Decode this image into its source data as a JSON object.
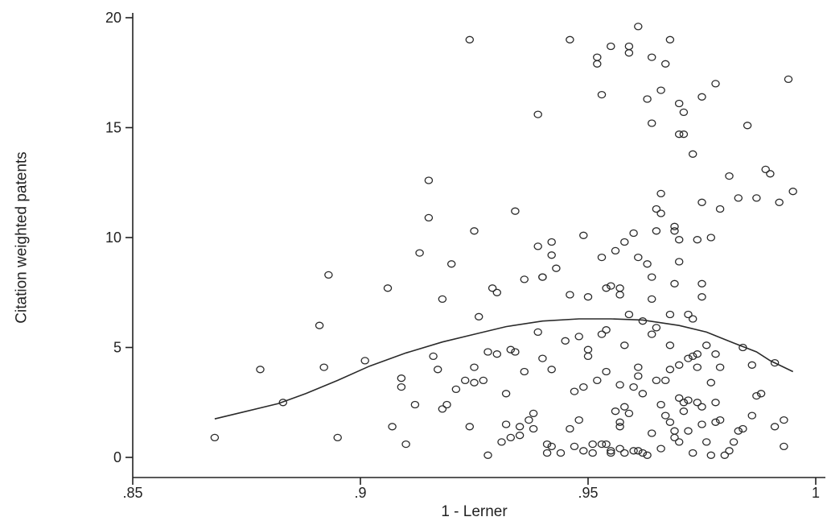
{
  "chart_data": {
    "type": "scatter",
    "xlabel": "1 - Lerner",
    "ylabel": "Citation weighted patents",
    "xlim": [
      0.85,
      1.0
    ],
    "ylim": [
      0,
      20
    ],
    "xticks": [
      {
        "value": 0.85,
        "label": ".85"
      },
      {
        "value": 0.9,
        "label": ".9"
      },
      {
        "value": 0.95,
        "label": ".95"
      },
      {
        "value": 1.0,
        "label": "1"
      }
    ],
    "yticks": [
      {
        "value": 0,
        "label": "0"
      },
      {
        "value": 5,
        "label": "5"
      },
      {
        "value": 10,
        "label": "10"
      },
      {
        "value": 15,
        "label": "15"
      },
      {
        "value": 20,
        "label": "20"
      }
    ],
    "grid": false,
    "legend": "none",
    "colors": {
      "marks": "#2a2a2a",
      "axes": "#222222",
      "background": "#ffffff"
    },
    "series": [
      {
        "mark": "hollow-circle",
        "points": [
          [
            0.868,
            0.9
          ],
          [
            0.878,
            4.0
          ],
          [
            0.883,
            2.5
          ],
          [
            0.891,
            6.0
          ],
          [
            0.892,
            4.1
          ],
          [
            0.893,
            8.3
          ],
          [
            0.895,
            0.9
          ],
          [
            0.901,
            4.4
          ],
          [
            0.906,
            7.7
          ],
          [
            0.907,
            1.4
          ],
          [
            0.909,
            3.6
          ],
          [
            0.909,
            3.2
          ],
          [
            0.91,
            0.6
          ],
          [
            0.912,
            2.4
          ],
          [
            0.913,
            9.3
          ],
          [
            0.915,
            12.6
          ],
          [
            0.915,
            10.9
          ],
          [
            0.916,
            4.6
          ],
          [
            0.917,
            4.0
          ],
          [
            0.918,
            7.2
          ],
          [
            0.918,
            2.2
          ],
          [
            0.919,
            2.4
          ],
          [
            0.92,
            8.8
          ],
          [
            0.921,
            3.1
          ],
          [
            0.923,
            3.5
          ],
          [
            0.924,
            1.4
          ],
          [
            0.924,
            19.0
          ],
          [
            0.925,
            10.3
          ],
          [
            0.925,
            4.1
          ],
          [
            0.925,
            3.4
          ],
          [
            0.926,
            6.4
          ],
          [
            0.927,
            3.5
          ],
          [
            0.928,
            4.8
          ],
          [
            0.928,
            0.1
          ],
          [
            0.929,
            7.7
          ],
          [
            0.93,
            7.5
          ],
          [
            0.93,
            4.7
          ],
          [
            0.931,
            0.7
          ],
          [
            0.932,
            2.9
          ],
          [
            0.932,
            1.5
          ],
          [
            0.933,
            4.9
          ],
          [
            0.933,
            0.9
          ],
          [
            0.934,
            11.2
          ],
          [
            0.934,
            4.8
          ],
          [
            0.935,
            1.4
          ],
          [
            0.935,
            1.0
          ],
          [
            0.936,
            8.1
          ],
          [
            0.936,
            3.9
          ],
          [
            0.937,
            1.7
          ],
          [
            0.938,
            1.3
          ],
          [
            0.938,
            2.0
          ],
          [
            0.939,
            5.7
          ],
          [
            0.939,
            15.6
          ],
          [
            0.939,
            9.6
          ],
          [
            0.94,
            8.2
          ],
          [
            0.94,
            8.2
          ],
          [
            0.94,
            4.5
          ],
          [
            0.941,
            0.6
          ],
          [
            0.941,
            0.2
          ],
          [
            0.942,
            9.8
          ],
          [
            0.942,
            9.2
          ],
          [
            0.942,
            4.0
          ],
          [
            0.942,
            0.5
          ],
          [
            0.943,
            8.6
          ],
          [
            0.944,
            0.2
          ],
          [
            0.945,
            5.3
          ],
          [
            0.946,
            1.3
          ],
          [
            0.946,
            19.0
          ],
          [
            0.946,
            7.4
          ],
          [
            0.947,
            3.0
          ],
          [
            0.947,
            0.5
          ],
          [
            0.948,
            5.5
          ],
          [
            0.948,
            1.7
          ],
          [
            0.949,
            10.1
          ],
          [
            0.949,
            3.2
          ],
          [
            0.949,
            0.3
          ],
          [
            0.95,
            7.3
          ],
          [
            0.95,
            4.6
          ],
          [
            0.95,
            4.9
          ],
          [
            0.951,
            0.6
          ],
          [
            0.951,
            0.2
          ],
          [
            0.952,
            17.9
          ],
          [
            0.952,
            18.2
          ],
          [
            0.952,
            3.5
          ],
          [
            0.953,
            16.5
          ],
          [
            0.953,
            9.1
          ],
          [
            0.953,
            5.6
          ],
          [
            0.953,
            0.6
          ],
          [
            0.954,
            0.6
          ],
          [
            0.954,
            7.7
          ],
          [
            0.954,
            5.8
          ],
          [
            0.954,
            3.9
          ],
          [
            0.955,
            18.7
          ],
          [
            0.955,
            7.8
          ],
          [
            0.955,
            0.3
          ],
          [
            0.955,
            0.2
          ],
          [
            0.956,
            9.4
          ],
          [
            0.956,
            2.1
          ],
          [
            0.957,
            7.7
          ],
          [
            0.957,
            7.4
          ],
          [
            0.957,
            3.3
          ],
          [
            0.957,
            1.6
          ],
          [
            0.957,
            1.4
          ],
          [
            0.957,
            0.4
          ],
          [
            0.958,
            9.8
          ],
          [
            0.958,
            5.1
          ],
          [
            0.958,
            2.3
          ],
          [
            0.958,
            0.2
          ],
          [
            0.959,
            18.7
          ],
          [
            0.959,
            18.4
          ],
          [
            0.959,
            6.5
          ],
          [
            0.959,
            2.0
          ],
          [
            0.96,
            10.2
          ],
          [
            0.96,
            3.2
          ],
          [
            0.96,
            0.3
          ],
          [
            0.961,
            19.6
          ],
          [
            0.961,
            9.1
          ],
          [
            0.961,
            4.1
          ],
          [
            0.961,
            3.7
          ],
          [
            0.961,
            0.3
          ],
          [
            0.962,
            6.2
          ],
          [
            0.962,
            2.9
          ],
          [
            0.962,
            0.2
          ],
          [
            0.963,
            16.3
          ],
          [
            0.963,
            8.8
          ],
          [
            0.963,
            0.1
          ],
          [
            0.964,
            18.2
          ],
          [
            0.964,
            15.2
          ],
          [
            0.964,
            8.2
          ],
          [
            0.964,
            7.2
          ],
          [
            0.964,
            5.6
          ],
          [
            0.964,
            1.1
          ],
          [
            0.965,
            10.3
          ],
          [
            0.965,
            11.3
          ],
          [
            0.965,
            5.9
          ],
          [
            0.965,
            3.5
          ],
          [
            0.966,
            16.7
          ],
          [
            0.966,
            11.1
          ],
          [
            0.966,
            12.0
          ],
          [
            0.966,
            2.4
          ],
          [
            0.966,
            0.4
          ],
          [
            0.967,
            17.9
          ],
          [
            0.967,
            3.5
          ],
          [
            0.967,
            1.9
          ],
          [
            0.968,
            19.0
          ],
          [
            0.968,
            6.5
          ],
          [
            0.968,
            5.1
          ],
          [
            0.968,
            4.0
          ],
          [
            0.968,
            1.6
          ],
          [
            0.969,
            10.5
          ],
          [
            0.969,
            10.3
          ],
          [
            0.969,
            7.9
          ],
          [
            0.969,
            1.2
          ],
          [
            0.969,
            0.9
          ],
          [
            0.97,
            16.1
          ],
          [
            0.97,
            14.7
          ],
          [
            0.97,
            9.9
          ],
          [
            0.97,
            8.9
          ],
          [
            0.97,
            4.2
          ],
          [
            0.97,
            2.7
          ],
          [
            0.97,
            0.7
          ],
          [
            0.971,
            15.7
          ],
          [
            0.971,
            14.7
          ],
          [
            0.971,
            2.5
          ],
          [
            0.971,
            2.1
          ],
          [
            0.972,
            6.5
          ],
          [
            0.972,
            4.5
          ],
          [
            0.972,
            2.6
          ],
          [
            0.972,
            1.2
          ],
          [
            0.973,
            13.8
          ],
          [
            0.973,
            6.3
          ],
          [
            0.973,
            4.6
          ],
          [
            0.973,
            0.2
          ],
          [
            0.974,
            9.9
          ],
          [
            0.974,
            4.7
          ],
          [
            0.974,
            4.1
          ],
          [
            0.974,
            2.5
          ],
          [
            0.975,
            16.4
          ],
          [
            0.975,
            11.6
          ],
          [
            0.975,
            7.9
          ],
          [
            0.975,
            7.3
          ],
          [
            0.975,
            2.3
          ],
          [
            0.975,
            1.5
          ],
          [
            0.976,
            5.1
          ],
          [
            0.976,
            0.7
          ],
          [
            0.977,
            10.0
          ],
          [
            0.977,
            3.4
          ],
          [
            0.977,
            0.1
          ],
          [
            0.978,
            17.0
          ],
          [
            0.978,
            4.7
          ],
          [
            0.978,
            2.5
          ],
          [
            0.978,
            1.6
          ],
          [
            0.979,
            11.3
          ],
          [
            0.979,
            4.1
          ],
          [
            0.979,
            1.7
          ],
          [
            0.98,
            0.1
          ],
          [
            0.981,
            12.8
          ],
          [
            0.981,
            0.3
          ],
          [
            0.982,
            0.7
          ],
          [
            0.983,
            11.8
          ],
          [
            0.983,
            1.2
          ],
          [
            0.984,
            5.0
          ],
          [
            0.984,
            1.3
          ],
          [
            0.985,
            15.1
          ],
          [
            0.986,
            4.2
          ],
          [
            0.986,
            1.9
          ],
          [
            0.987,
            2.8
          ],
          [
            0.987,
            11.8
          ],
          [
            0.988,
            2.9
          ],
          [
            0.989,
            13.1
          ],
          [
            0.99,
            12.9
          ],
          [
            0.991,
            1.4
          ],
          [
            0.991,
            4.3
          ],
          [
            0.992,
            11.6
          ],
          [
            0.993,
            1.7
          ],
          [
            0.993,
            0.5
          ],
          [
            0.994,
            17.2
          ],
          [
            0.995,
            12.1
          ]
        ]
      },
      {
        "mark": "line",
        "points": [
          [
            0.868,
            1.75
          ],
          [
            0.875,
            2.1
          ],
          [
            0.882,
            2.45
          ],
          [
            0.888,
            2.9
          ],
          [
            0.895,
            3.5
          ],
          [
            0.902,
            4.15
          ],
          [
            0.91,
            4.75
          ],
          [
            0.918,
            5.25
          ],
          [
            0.925,
            5.6
          ],
          [
            0.932,
            5.95
          ],
          [
            0.94,
            6.2
          ],
          [
            0.948,
            6.3
          ],
          [
            0.955,
            6.3
          ],
          [
            0.962,
            6.25
          ],
          [
            0.97,
            6.0
          ],
          [
            0.976,
            5.7
          ],
          [
            0.982,
            5.2
          ],
          [
            0.987,
            4.8
          ],
          [
            0.99,
            4.4
          ],
          [
            0.995,
            3.9
          ]
        ]
      }
    ]
  }
}
